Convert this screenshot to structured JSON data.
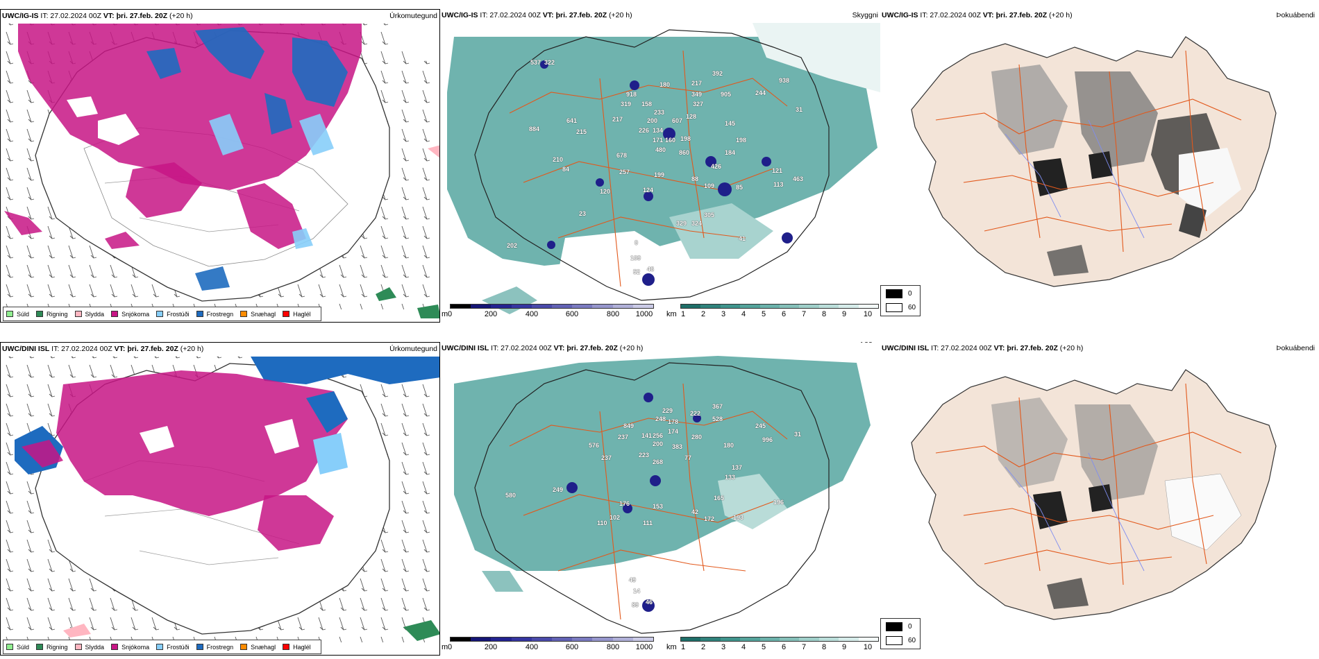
{
  "colors": {
    "sudd": "#90ee90",
    "rigning": "#2e8b57",
    "slydda": "#ffb6c1",
    "snjokoma": "#c71585",
    "frostudi": "#87cefa",
    "frostregn": "#1e6bbf",
    "snaehagl": "#ff8c00",
    "haglel": "#ff0000",
    "teal": "#3f9a93",
    "land": "#f3e4d8",
    "roads": "#e2581b"
  },
  "rows": [
    {
      "model": "UWC/IG-IS",
      "it_text": "IT: 27.02.2024 00Z",
      "vt_text": "VT: þri. 27.feb. 20Z",
      "lead": "(+20 h)",
      "numbers": [
        "537",
        "322",
        "884",
        "918",
        "319",
        "158",
        "180",
        "217",
        "392",
        "349",
        "327",
        "905",
        "244",
        "938",
        "233",
        "641",
        "215",
        "217",
        "200",
        "607",
        "128",
        "226",
        "134",
        "171",
        "160",
        "198",
        "145",
        "198",
        "31",
        "678",
        "480",
        "860",
        "210",
        "184",
        "257",
        "199",
        "426",
        "121",
        "84",
        "88",
        "109",
        "113",
        "463",
        "120",
        "124",
        "85",
        "329",
        "324",
        "305",
        "41",
        "23",
        "202",
        "109",
        "52",
        "46",
        "0"
      ]
    },
    {
      "model": "UWC/DINI ISL",
      "it_text": "IT: 27.02.2024 00Z",
      "vt_text": "VT: þri. 27.feb. 20Z",
      "lead": "(+20 h)",
      "numbers": [
        "229",
        "367",
        "849",
        "248",
        "178",
        "222",
        "528",
        "245",
        "237",
        "141",
        "256",
        "174",
        "280",
        "576",
        "180",
        "200",
        "383",
        "996",
        "237",
        "223",
        "77",
        "31",
        "268",
        "137",
        "133",
        "249",
        "580",
        "176",
        "153",
        "165",
        "196",
        "42",
        "102",
        "172",
        "193",
        "110",
        "111",
        "49",
        "14",
        "89",
        "46"
      ]
    }
  ],
  "tags": {
    "precip": "Úrkomutegund",
    "visibility": "Skyggni",
    "fog": "Þokuábendi"
  },
  "precip_legend": [
    "Súld",
    "Rigning",
    "Slydda",
    "Snjókoma",
    "Frostúði",
    "Frostregn",
    "Snæhagl",
    "Haglél"
  ],
  "height_scale": {
    "unit": "m",
    "ticks": [
      "0",
      "200",
      "400",
      "600",
      "800",
      "1000"
    ]
  },
  "vis_scale": {
    "unit": "km",
    "ticks": [
      "1",
      "2",
      "3",
      "4",
      "5",
      "6",
      "7",
      "8",
      "9",
      "10"
    ]
  },
  "cloud_legend": {
    "top": "0",
    "bottom": "60"
  }
}
